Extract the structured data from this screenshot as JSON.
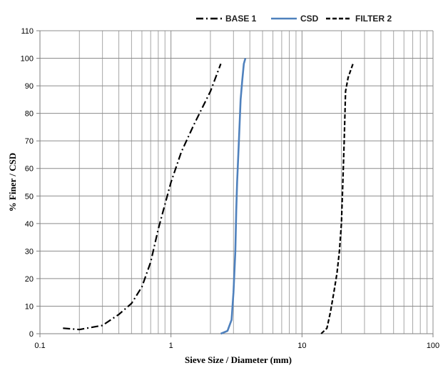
{
  "chart_data": {
    "type": "line",
    "title": "",
    "xlabel": "Sieve Size / Diameter (mm)",
    "ylabel": "% Finer / CSD",
    "xscale": "log",
    "xlim": [
      0.1,
      100
    ],
    "ylim": [
      0,
      110
    ],
    "xticks": [
      0.1,
      1,
      10,
      100
    ],
    "xtick_labels": [
      "0.1",
      "1",
      "10",
      "100"
    ],
    "yticks": [
      0,
      10,
      20,
      30,
      40,
      50,
      60,
      70,
      80,
      90,
      100,
      110
    ],
    "ytick_labels": [
      "0",
      "10",
      "20",
      "30",
      "40",
      "50",
      "60",
      "70",
      "80",
      "90",
      "100",
      "110"
    ],
    "grid": true,
    "legend_position": "top",
    "series": [
      {
        "name": "BASE 1",
        "color": "#000000",
        "style": "dash-dot",
        "x": [
          0.15,
          0.2,
          0.3,
          0.4,
          0.5,
          0.6,
          0.7,
          0.8,
          0.9,
          1.0,
          1.2,
          1.5,
          2.0,
          2.4
        ],
        "y": [
          2,
          1.5,
          3,
          7,
          11,
          17,
          26,
          38,
          47,
          55,
          66,
          76,
          88,
          98
        ]
      },
      {
        "name": "CSD",
        "color": "#4f81bd",
        "style": "solid",
        "x": [
          2.4,
          2.7,
          2.9,
          3.0,
          3.1,
          3.15,
          3.2,
          3.3,
          3.4,
          3.5,
          3.6,
          3.7
        ],
        "y": [
          0,
          1,
          5,
          15,
          30,
          45,
          55,
          70,
          85,
          92,
          98,
          100
        ]
      },
      {
        "name": "FILTER 2",
        "color": "#000000",
        "style": "dashed",
        "x": [
          14,
          15.5,
          16.5,
          17.5,
          18.5,
          19.3,
          20,
          20.5,
          21,
          21.5,
          22.5,
          24.5
        ],
        "y": [
          0,
          2,
          8,
          15,
          22,
          30,
          40,
          55,
          70,
          88,
          93,
          98
        ]
      }
    ]
  }
}
